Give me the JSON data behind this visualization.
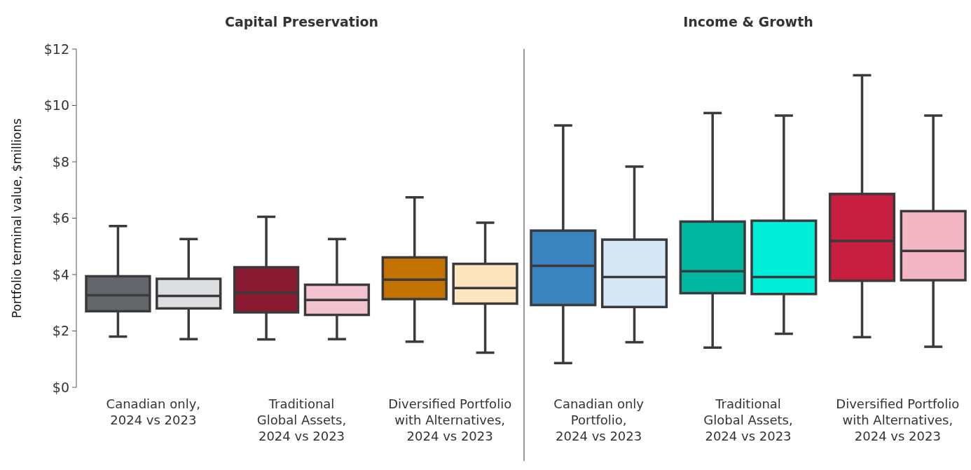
{
  "chart_data": [
    {
      "type": "box",
      "title": "Capital Preservation",
      "ylabel": "Portfolio terminal value, $millions",
      "categories": [
        "Canadian only,\n2024 vs 2023",
        "Traditional\nGlobal Assets,\n2024 vs 2023",
        "Diversified Portfolio\nwith Alternatives,\n2024 vs 2023"
      ],
      "ylim": [
        0,
        12
      ],
      "yticks": [
        {
          "value": 0,
          "label": "$0"
        },
        {
          "value": 2,
          "label": "$2"
        },
        {
          "value": 4,
          "label": "$4"
        },
        {
          "value": 6,
          "label": "$6"
        },
        {
          "value": 8,
          "label": "$8"
        },
        {
          "value": 10,
          "label": "$10"
        },
        {
          "value": 12,
          "label": "$12"
        }
      ],
      "grid": false,
      "series": [
        {
          "colors": [
            "#63666a",
            "#8a1a32",
            "#c47300"
          ],
          "boxes": [
            {
              "low": 1.8,
              "q1": 2.7,
              "median": 3.27,
              "q3": 3.94,
              "high": 5.72
            },
            {
              "low": 1.7,
              "q1": 2.66,
              "median": 3.36,
              "q3": 4.26,
              "high": 6.05
            },
            {
              "low": 1.62,
              "q1": 3.13,
              "median": 3.82,
              "q3": 4.61,
              "high": 6.74
            }
          ]
        },
        {
          "colors": [
            "#dcdee0",
            "#f4c3d0",
            "#fde5c0"
          ],
          "boxes": [
            {
              "low": 1.71,
              "q1": 2.8,
              "median": 3.24,
              "q3": 3.85,
              "high": 5.26
            },
            {
              "low": 1.71,
              "q1": 2.57,
              "median": 3.1,
              "q3": 3.64,
              "high": 5.26
            },
            {
              "low": 1.23,
              "q1": 2.97,
              "median": 3.52,
              "q3": 4.38,
              "high": 5.84
            }
          ]
        }
      ]
    },
    {
      "type": "box",
      "title": "Income & Growth",
      "categories": [
        "Canadian only\nPortfolio,\n2024 vs 2023",
        "Traditional\nGlobal Assets,\n2024 vs 2023",
        "Diversified Portfolio\nwith Alternatives,\n2024 vs 2023"
      ],
      "ylim": [
        0,
        12
      ],
      "tick_labels": "x",
      "grid": false,
      "series": [
        {
          "colors": [
            "#3a85c0",
            "#00b8a0",
            "#c81e40"
          ],
          "boxes": [
            {
              "low": 0.86,
              "q1": 2.92,
              "median": 4.31,
              "q3": 5.56,
              "high": 9.29
            },
            {
              "low": 1.41,
              "q1": 3.34,
              "median": 4.12,
              "q3": 5.88,
              "high": 9.73
            },
            {
              "low": 1.78,
              "q1": 3.78,
              "median": 5.19,
              "q3": 6.86,
              "high": 11.07
            }
          ]
        },
        {
          "colors": [
            "#d6e8f5",
            "#00eed8",
            "#f4b6c4"
          ],
          "boxes": [
            {
              "low": 1.6,
              "q1": 2.85,
              "median": 3.91,
              "q3": 5.24,
              "high": 7.83
            },
            {
              "low": 1.9,
              "q1": 3.31,
              "median": 3.91,
              "q3": 5.91,
              "high": 9.64
            },
            {
              "low": 1.44,
              "q1": 3.8,
              "median": 4.84,
              "q3": 6.25,
              "high": 9.64
            }
          ]
        }
      ]
    }
  ]
}
